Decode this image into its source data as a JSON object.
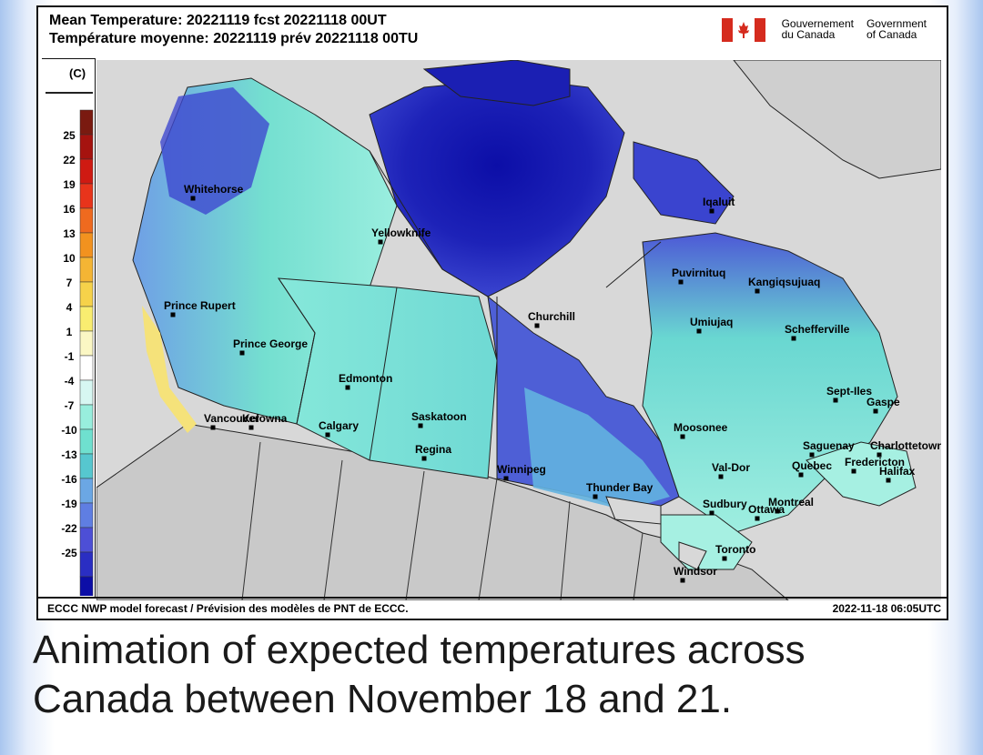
{
  "title_en": "Mean Temperature: 20221119 fcst 20221118 00UT",
  "title_fr": "Température moyenne: 20221119 prév 20221118 00TU",
  "gov": {
    "fr_line1": "Gouvernement",
    "fr_line2": "du Canada",
    "en_line1": "Government",
    "en_line2": "of Canada",
    "flag_color": "#d52b1e"
  },
  "legend": {
    "unit": "(C)",
    "ticks": [
      "25",
      "22",
      "19",
      "16",
      "13",
      "10",
      "7",
      "4",
      "1",
      "-1",
      "-4",
      "-7",
      "-10",
      "-13",
      "-16",
      "-19",
      "-22",
      "-25"
    ],
    "colors": [
      "#7a1a10",
      "#a5130f",
      "#cf1a12",
      "#e8341b",
      "#ef6a1f",
      "#f2921f",
      "#f4b534",
      "#f6d24a",
      "#f9ed70",
      "#fbf7c4",
      "#ffffff",
      "#d7f7f2",
      "#98eedd",
      "#6fe0cf",
      "#56c7cf",
      "#6ba7e4",
      "#5f7ee2",
      "#4d4fd6",
      "#2a2ec3",
      "#0c0ea7"
    ]
  },
  "cities": [
    {
      "name": "Whitehorse"
    },
    {
      "name": "Yellowknife"
    },
    {
      "name": "Iqaluit"
    },
    {
      "name": "Puvirnituq"
    },
    {
      "name": "Kangiqsujuaq"
    },
    {
      "name": "Prince Rupert"
    },
    {
      "name": "Churchill"
    },
    {
      "name": "Umiujaq"
    },
    {
      "name": "Schefferville"
    },
    {
      "name": "Prince George"
    },
    {
      "name": "Edmonton"
    },
    {
      "name": "Sept-Iles"
    },
    {
      "name": "Gaspe"
    },
    {
      "name": "Vancouver"
    },
    {
      "name": "Kelowna"
    },
    {
      "name": "Calgary"
    },
    {
      "name": "Saskatoon"
    },
    {
      "name": "Moosonee"
    },
    {
      "name": "Regina"
    },
    {
      "name": "Saguenay"
    },
    {
      "name": "Charlottetown"
    },
    {
      "name": "Winnipeg"
    },
    {
      "name": "Val-Dor"
    },
    {
      "name": "Quebec"
    },
    {
      "name": "Fredericton"
    },
    {
      "name": "Halifax"
    },
    {
      "name": "Thunder Bay"
    },
    {
      "name": "Montreal"
    },
    {
      "name": "Sudbury"
    },
    {
      "name": "Ottawa"
    },
    {
      "name": "Toronto"
    },
    {
      "name": "Windsor"
    }
  ],
  "footer": {
    "credit": "ECCC NWP model forecast / Prévision des modèles de PNT de ECCC.",
    "timestamp": "2022-11-18 06:05UTC"
  },
  "caption": {
    "line1": "Animation of expected temperatures across",
    "line2": "Canada between November 18 and 21."
  }
}
